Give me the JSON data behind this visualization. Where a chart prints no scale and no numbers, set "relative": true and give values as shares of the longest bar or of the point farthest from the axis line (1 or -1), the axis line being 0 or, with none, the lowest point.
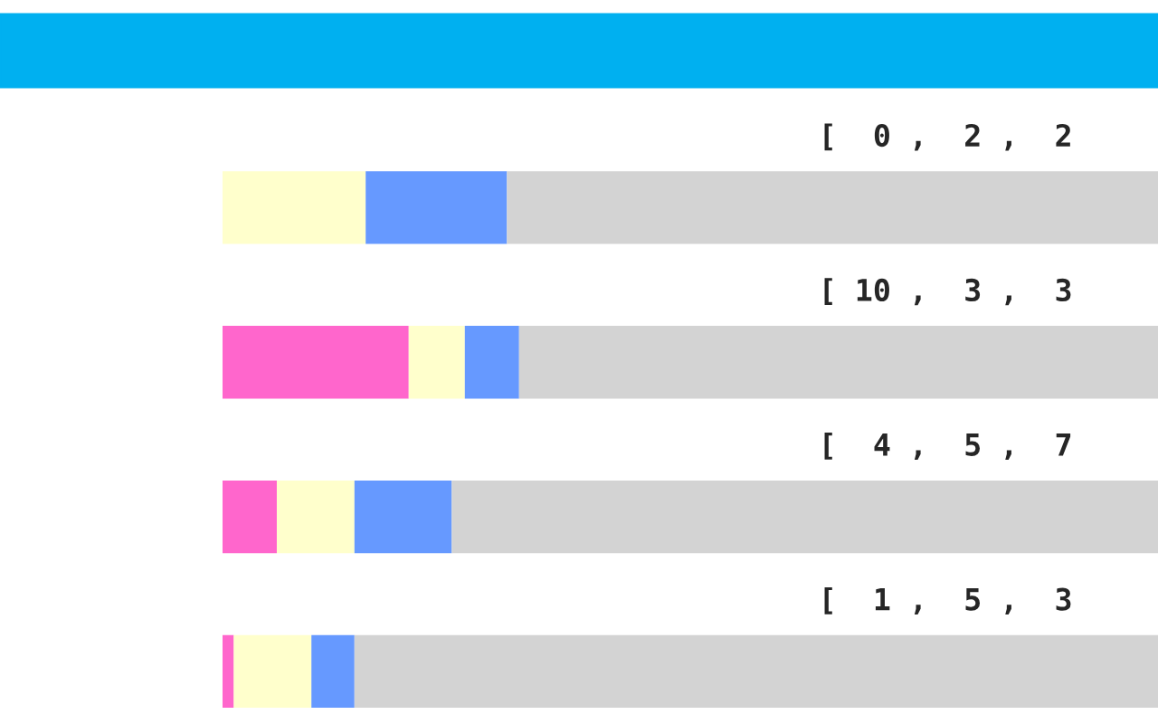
{
  "chart_data": {
    "type": "bar",
    "orientation": "horizontal",
    "stacked": true,
    "relative": true,
    "categories": [
      null,
      null,
      null,
      null
    ],
    "series": [
      {
        "color": "#ff66cc",
        "values": [
          0,
          0.199,
          0.058,
          0.012
        ]
      },
      {
        "color": "#ffffcc",
        "values": [
          0.153,
          0.06,
          0.083,
          0.083
        ]
      },
      {
        "color": "#6699ff",
        "values": [
          0.151,
          0.058,
          0.104,
          0.046
        ]
      },
      {
        "color": "#d3d3d3",
        "values": [
          0.696,
          0.683,
          0.755,
          0.859
        ]
      }
    ],
    "annotations": [
      "[  0 ,  2 ,  2",
      "[ 10 ,  3 ,  3",
      "[  4 ,  5 ,  7",
      "[  1 ,  5 ,  3"
    ],
    "grid": false,
    "legend": false
  }
}
